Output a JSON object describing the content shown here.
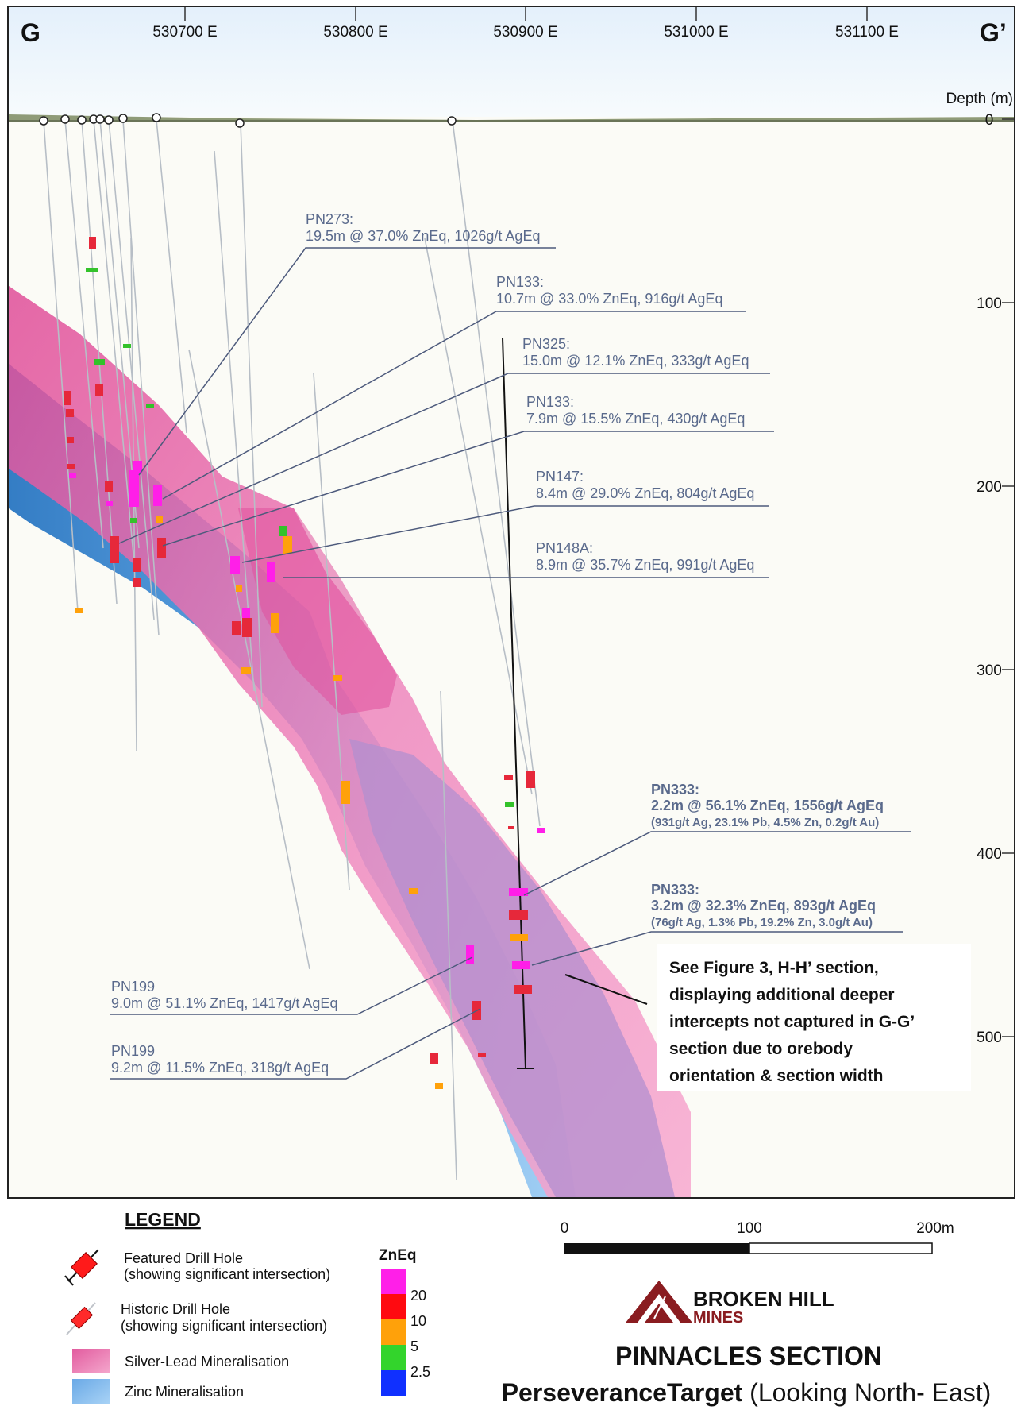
{
  "section": {
    "start_label": "G",
    "end_label": "G’",
    "eastings": [
      "530700 E",
      "530800 E",
      "530900 E",
      "531000 E",
      "531100 E"
    ],
    "depth_title": "Depth (m)",
    "depth_ticks": [
      "0",
      "100",
      "200",
      "300",
      "400",
      "500"
    ]
  },
  "intercepts": [
    {
      "hole": "PN273:",
      "text": "19.5m @ 37.0% ZnEq, 1026g/t AgEq"
    },
    {
      "hole": "PN133:",
      "text": "10.7m @ 33.0% ZnEq, 916g/t AgEq"
    },
    {
      "hole": "PN325:",
      "text": "15.0m @ 12.1% ZnEq, 333g/t AgEq"
    },
    {
      "hole": "PN133:",
      "text": "7.9m @ 15.5% ZnEq, 430g/t AgEq"
    },
    {
      "hole": "PN147:",
      "text": "8.4m @ 29.0% ZnEq, 804g/t AgEq"
    },
    {
      "hole": "PN148A:",
      "text": "8.9m @ 35.7% ZnEq, 991g/t AgEq"
    },
    {
      "hole": "PN199",
      "text": "9.0m @ 51.1% ZnEq, 1417g/t AgEq"
    },
    {
      "hole": "PN199",
      "text": "9.2m @ 11.5% ZnEq, 318g/t AgEq"
    }
  ],
  "bold_intercepts": [
    {
      "hole": "PN333:",
      "text": "2.2m @ 56.1% ZnEq, 1556g/t AgEq",
      "detail": "(931g/t Ag, 23.1% Pb, 4.5% Zn, 0.2g/t Au)"
    },
    {
      "hole": "PN333:",
      "text": "3.2m @ 32.3% ZnEq, 893g/t AgEq",
      "detail": "(76g/t Ag, 1.3% Pb, 19.2% Zn, 3.0g/t Au)"
    }
  ],
  "note": {
    "lines": [
      "See Figure 3, H-H’ section,",
      "displaying additional deeper",
      "intercepts not captured in G-G’",
      "section due to orebody",
      "orientation & section width"
    ]
  },
  "legend": {
    "title": "LEGEND",
    "featured": [
      "Featured Drill Hole",
      "(showing significant intersection)"
    ],
    "historic": [
      "Historic Drill Hole",
      "(showing significant intersection)"
    ],
    "silver_lead": "Silver-Lead Mineralisation",
    "zinc": "Zinc Mineralisation",
    "zneq_title": "ZnEq",
    "zneq_labels": [
      "20",
      "10",
      "5",
      "2.5"
    ],
    "zneq_colors": [
      "#ff1fe8",
      "#ff0a10",
      "#ffa10a",
      "#33d42c",
      "#1030ff"
    ]
  },
  "scale": {
    "labels": [
      "0",
      "100",
      "200m"
    ]
  },
  "brand": {
    "name_top": "BROKEN HILL",
    "name_bottom": "MINES",
    "color": "#8a1c20"
  },
  "title": {
    "main": "PINNACLES SECTION",
    "sub_bold": "PerseveranceTarget",
    "sub_rest": " (Looking North- East)"
  }
}
